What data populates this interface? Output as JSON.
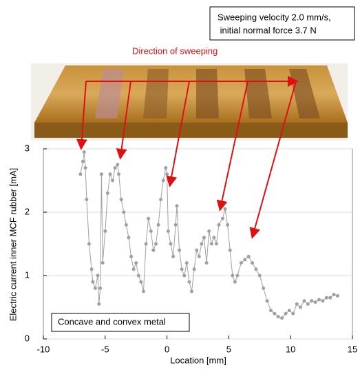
{
  "chart_data": {
    "type": "line",
    "annotations": [
      "Sweeping velocity 2.0 mm/s,",
      " initial normal force 3.7 N",
      "Direction of sweeping"
    ],
    "xlabel": "Location [mm]",
    "ylabel": "Electric current inner MCF rubber [mA]",
    "xlim": [
      -10,
      15
    ],
    "ylim": [
      0,
      3
    ],
    "xticks": [
      -10,
      -5,
      0,
      5,
      10,
      15
    ],
    "yticks": [
      0,
      1,
      2,
      3
    ],
    "grid": true,
    "x": [
      -7,
      -6.8,
      -6.7,
      -6.6,
      -6.5,
      -6.3,
      -6.1,
      -6.0,
      -5.8,
      -5.6,
      -5.5,
      -5.4,
      -5.3,
      -5.2,
      -5.0,
      -4.8,
      -4.6,
      -4.4,
      -4.2,
      -4.0,
      -3.9,
      -3.7,
      -3.5,
      -3.3,
      -3.1,
      -2.9,
      -2.7,
      -2.5,
      -2.3,
      -2.1,
      -1.9,
      -1.7,
      -1.5,
      -1.3,
      -1.1,
      -0.9,
      -0.7,
      -0.5,
      -0.3,
      -0.1,
      0.0,
      0.1,
      0.3,
      0.5,
      0.7,
      0.8,
      1.0,
      1.2,
      1.4,
      1.6,
      1.8,
      2.0,
      2.2,
      2.4,
      2.6,
      2.8,
      3.0,
      3.2,
      3.4,
      3.6,
      3.8,
      4.0,
      4.2,
      4.5,
      4.7,
      4.9,
      5.1,
      5.3,
      5.5,
      5.7,
      6.0,
      6.3,
      6.6,
      6.9,
      7.2,
      7.5,
      7.8,
      8.1,
      8.4,
      8.7,
      9.0,
      9.3,
      9.6,
      9.9,
      10.2,
      10.5,
      10.8,
      11.1,
      11.4,
      11.7,
      12.0,
      12.3,
      12.6,
      12.9,
      13.2,
      13.5,
      13.8
    ],
    "series": [
      {
        "name": "Concave and convex metal",
        "color": "#a0a0a0",
        "values": [
          2.6,
          2.8,
          2.95,
          2.7,
          2.2,
          1.5,
          1.1,
          0.9,
          0.8,
          1.0,
          0.55,
          0.8,
          2.6,
          1.2,
          1.7,
          2.3,
          2.6,
          2.5,
          2.7,
          2.75,
          2.6,
          2.2,
          2.0,
          1.8,
          1.6,
          1.3,
          1.1,
          1.2,
          1.0,
          0.9,
          0.75,
          1.5,
          1.9,
          1.7,
          1.4,
          1.5,
          1.8,
          2.2,
          2.5,
          2.7,
          2.6,
          1.7,
          1.5,
          1.3,
          1.8,
          2.1,
          1.4,
          1.1,
          1.0,
          1.2,
          0.9,
          0.75,
          1.1,
          1.4,
          1.3,
          1.5,
          1.6,
          1.2,
          1.7,
          1.5,
          1.6,
          1.5,
          1.8,
          1.9,
          2.05,
          1.8,
          1.4,
          1.0,
          0.9,
          1.0,
          1.2,
          1.25,
          1.3,
          1.2,
          1.1,
          1.0,
          0.8,
          0.6,
          0.45,
          0.4,
          0.35,
          0.33,
          0.4,
          0.45,
          0.4,
          0.55,
          0.5,
          0.6,
          0.55,
          0.6,
          0.58,
          0.62,
          0.6,
          0.65,
          0.65,
          0.7,
          0.68
        ]
      }
    ]
  }
}
